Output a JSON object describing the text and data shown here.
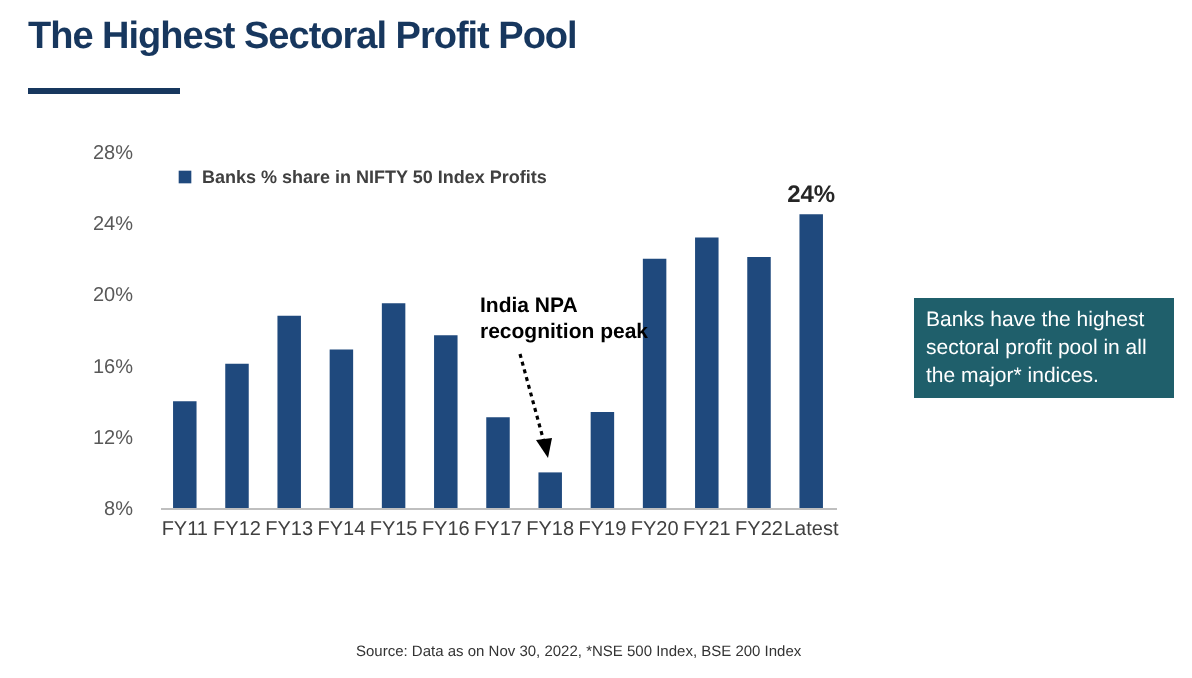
{
  "chart_data": {
    "type": "bar",
    "title": "The Highest Sectoral Profit Pool",
    "categories": [
      "FY11",
      "FY12",
      "FY13",
      "FY14",
      "FY15",
      "FY16",
      "FY17",
      "FY18",
      "FY19",
      "FY20",
      "FY21",
      "FY22",
      "Latest"
    ],
    "series": [
      {
        "name": "Banks % share in NIFTY 50 Index Profits",
        "color": "#1f497d",
        "values": [
          14.0,
          16.1,
          18.8,
          16.9,
          19.5,
          17.7,
          13.1,
          10.0,
          13.4,
          22.0,
          23.2,
          22.1,
          24.5
        ],
        "value_labels": [
          null,
          null,
          null,
          null,
          null,
          null,
          null,
          null,
          null,
          null,
          null,
          null,
          "24%"
        ]
      }
    ],
    "ylim": [
      8,
      28
    ],
    "yticks": [
      {
        "value": 8,
        "label": "8%"
      },
      {
        "value": 12,
        "label": "12%"
      },
      {
        "value": 16,
        "label": "16%"
      },
      {
        "value": 20,
        "label": "20%"
      },
      {
        "value": 24,
        "label": "24%"
      },
      {
        "value": 28,
        "label": "28%"
      }
    ],
    "grid": false,
    "legend": "top left",
    "annotations": [
      "India NPA recognition peak",
      "Banks have the highest sectoral profit pool in all the major* indices.",
      "Source: Data as on Nov 30, 2022, *NSE 500 Index, BSE 200 Index"
    ]
  }
}
